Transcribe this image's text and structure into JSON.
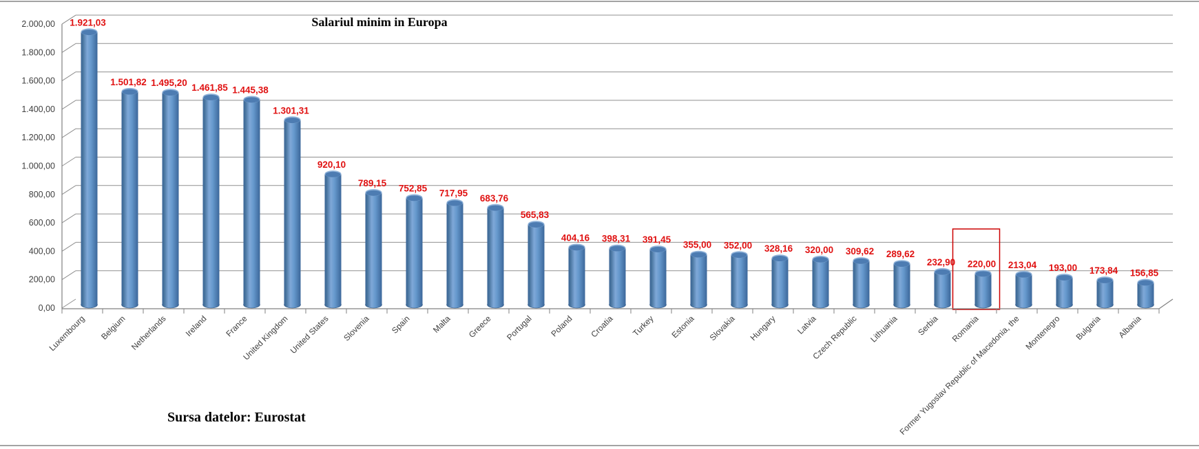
{
  "chart_data": {
    "type": "bar",
    "style": "3d-cylinder",
    "title": "Salariul minim in Europa",
    "source_note": "Sursa datelor: Eurostat",
    "legend": "none",
    "grid": true,
    "categories": [
      "Luxembourg",
      "Belgium",
      "Netherlands",
      "Ireland",
      "France",
      "United Kingdom",
      "United States",
      "Slovenia",
      "Spain",
      "Malta",
      "Greece",
      "Portugal",
      "Poland",
      "Croatia",
      "Turkey",
      "Estonia",
      "Slovakia",
      "Hungary",
      "Latvia",
      "Czech Republic",
      "Lithuania",
      "Serbia",
      "Romania",
      "Former Yugoslav Republic of Macedonia, the",
      "Montenegro",
      "Bulgaria",
      "Albania"
    ],
    "values": [
      1921.03,
      1501.82,
      1495.2,
      1461.85,
      1445.38,
      1301.31,
      920.1,
      789.15,
      752.85,
      717.95,
      683.76,
      565.83,
      404.16,
      398.31,
      391.45,
      355.0,
      352.0,
      328.16,
      320.0,
      309.62,
      289.62,
      232.9,
      220.0,
      213.04,
      193.0,
      173.84,
      156.85
    ],
    "value_labels": [
      "1.921,03",
      "1.501,82",
      "1.495,20",
      "1.461,85",
      "1.445,38",
      "1.301,31",
      "920,10",
      "789,15",
      "752,85",
      "717,95",
      "683,76",
      "565,83",
      "404,16",
      "398,31",
      "391,45",
      "355,00",
      "352,00",
      "328,16",
      "320,00",
      "309,62",
      "289,62",
      "232,90",
      "220,00",
      "213,04",
      "193,00",
      "173,84",
      "156,85"
    ],
    "xlabel": "",
    "ylabel": "",
    "ylim": [
      0,
      2000
    ],
    "y_axis": {
      "min": 0,
      "max": 2000,
      "step": 200,
      "tick_labels": [
        "0,00",
        "200,00",
        "400,00",
        "600,00",
        "800,00",
        "1.000,00",
        "1.200,00",
        "1.400,00",
        "1.600,00",
        "1.800,00",
        "2.000,00"
      ]
    },
    "highlight": {
      "category": "Romania",
      "color": "#cc0000"
    },
    "colors": {
      "bar_fill": "#4f81bd",
      "bar_edge": "#2f5480",
      "data_label": "#e01111",
      "grid_line": "#8f8f8f",
      "axis_line": "#808080",
      "tick_text": "#404040"
    }
  }
}
